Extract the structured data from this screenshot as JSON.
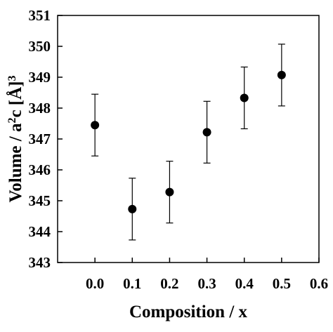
{
  "chart_data": {
    "type": "scatter",
    "title": "",
    "xlabel": "Composition / x",
    "ylabel": {
      "prefix": "Volume / a",
      "sup1": "2",
      "mid": "c [",
      "unit": "Å",
      "close": "]",
      "sup2": "3"
    },
    "xlim": [
      -0.1,
      0.6
    ],
    "ylim": [
      343,
      351
    ],
    "xticks": [
      0.0,
      0.1,
      0.2,
      0.3,
      0.4,
      0.5,
      0.6
    ],
    "xtick_labels": [
      "0.0",
      "0.1",
      "0.2",
      "0.3",
      "0.4",
      "0.5",
      "0.6"
    ],
    "yticks": [
      343,
      344,
      345,
      346,
      347,
      348,
      349,
      350,
      351
    ],
    "ytick_labels": [
      "343",
      "344",
      "345",
      "346",
      "347",
      "348",
      "349",
      "350",
      "351"
    ],
    "grid": false,
    "legend": "none",
    "series": [
      {
        "x": [
          0.0,
          0.1,
          0.2,
          0.3,
          0.4,
          0.5
        ],
        "y": [
          347.45,
          344.73,
          345.28,
          347.22,
          348.33,
          349.07
        ],
        "yerr": [
          1.0,
          1.0,
          1.0,
          1.0,
          1.0,
          1.0
        ],
        "marker": "filled-circle",
        "color": "#000000"
      }
    ]
  }
}
